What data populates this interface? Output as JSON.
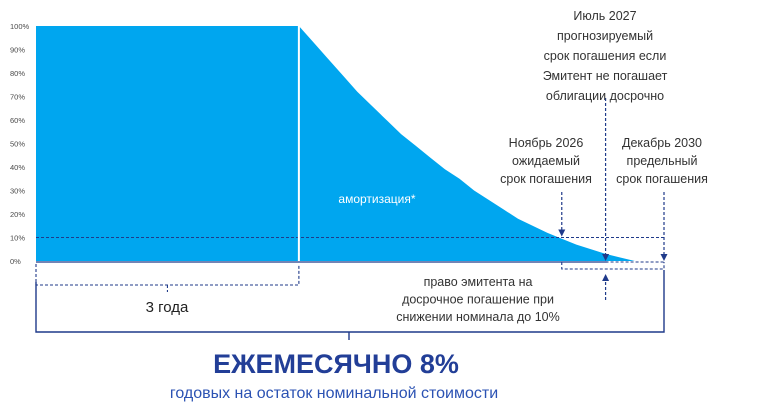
{
  "chart_data": {
    "type": "area",
    "y_ticks": [
      "100%",
      "90%",
      "80%",
      "70%",
      "60%",
      "50%",
      "40%",
      "30%",
      "20%",
      "10%",
      "0%"
    ],
    "ylim": [
      0,
      100
    ],
    "threshold_percent": 10,
    "series": [
      {
        "values": [
          {
            "t": 0,
            "y": 100
          },
          {
            "t": 36,
            "y": 100
          },
          {
            "t": 38,
            "y": 93
          },
          {
            "t": 40,
            "y": 86
          },
          {
            "t": 42,
            "y": 79
          },
          {
            "t": 44,
            "y": 72
          },
          {
            "t": 46,
            "y": 66
          },
          {
            "t": 48,
            "y": 60
          },
          {
            "t": 50,
            "y": 54
          },
          {
            "t": 52,
            "y": 49
          },
          {
            "t": 54,
            "y": 44
          },
          {
            "t": 56,
            "y": 39
          },
          {
            "t": 58,
            "y": 35
          },
          {
            "t": 60,
            "y": 30
          },
          {
            "t": 62,
            "y": 26
          },
          {
            "t": 64,
            "y": 22
          },
          {
            "t": 66,
            "y": 18
          },
          {
            "t": 68,
            "y": 15
          },
          {
            "t": 70,
            "y": 12
          },
          {
            "t": 72,
            "y": 9.5
          },
          {
            "t": 74,
            "y": 7
          },
          {
            "t": 76,
            "y": 5
          },
          {
            "t": 78,
            "y": 3
          },
          {
            "t": 80,
            "y": 1.5
          },
          {
            "t": 82,
            "y": 0
          }
        ]
      }
    ],
    "area_label": "амортизация*",
    "markers": {
      "nov2026": {
        "t": 72,
        "label": [
          "Ноябрь 2026",
          "ожидаемый",
          "срок погашения"
        ]
      },
      "jul2027": {
        "t": 78,
        "label": [
          "Июль 2027",
          "прогнозируемый",
          "срок погашения если",
          "Эмитент не погашает",
          "облигации досрочно"
        ]
      },
      "dec2030": {
        "t": 86,
        "label": [
          "Декабрь  2030",
          "предельный",
          "срок погашения"
        ]
      }
    },
    "call_right_label": [
      "право эмитента на",
      "досрочное погашение при",
      "снижении номинала до 10%"
    ],
    "period_label": "3 года"
  },
  "headline": "ЕЖЕМЕСЯЧНО 8%",
  "subheadline": "годовых на остаток номинальной стоимости",
  "colors": {
    "area": "#00a6ef",
    "axis": "#1f3a8a",
    "headline": "#223e97",
    "subheadline": "#2b52b3",
    "text": "#333333"
  }
}
